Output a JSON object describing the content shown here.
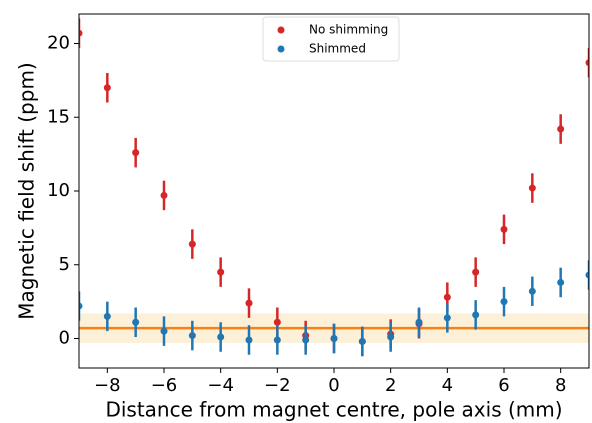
{
  "chart_data": {
    "type": "scatter",
    "x_label": "Distance from magnet centre, pole axis (mm)",
    "y_label": "Magnetic field shift (ppm)",
    "x": [
      -9,
      -8,
      -7,
      -6,
      -5,
      -4,
      -3,
      -2,
      -1,
      0,
      1,
      2,
      3,
      4,
      5,
      6,
      7,
      8,
      9
    ],
    "series": [
      {
        "name": "No shimming",
        "color": "#d62728",
        "values": [
          20.7,
          17.0,
          12.6,
          9.7,
          6.4,
          4.5,
          2.4,
          1.1,
          0.2,
          0.0,
          -0.2,
          0.3,
          1.0,
          2.8,
          4.5,
          7.4,
          10.2,
          14.2,
          18.7
        ],
        "errors": [
          1.0,
          1.0,
          1.0,
          1.0,
          1.0,
          1.0,
          1.0,
          1.0,
          1.0,
          1.0,
          1.0,
          1.0,
          1.0,
          1.0,
          1.0,
          1.0,
          1.0,
          1.0,
          1.0
        ]
      },
      {
        "name": "Shimmed",
        "color": "#1f77b4",
        "values": [
          2.2,
          1.5,
          1.1,
          0.5,
          0.2,
          0.1,
          -0.1,
          -0.1,
          -0.1,
          0.0,
          -0.2,
          0.1,
          1.1,
          1.4,
          1.6,
          2.5,
          3.2,
          3.8,
          4.3
        ],
        "errors": [
          1.0,
          1.0,
          1.0,
          1.0,
          1.0,
          1.0,
          1.0,
          1.0,
          1.0,
          1.0,
          1.0,
          1.0,
          1.0,
          1.0,
          1.0,
          1.0,
          1.0,
          1.0,
          1.0
        ]
      }
    ],
    "reference_line": {
      "value": 0.7,
      "band": [
        -0.3,
        1.7
      ],
      "color": "#ff7f0e",
      "band_color": "#fdf0d8"
    },
    "xlim": [
      -9,
      9
    ],
    "ylim": [
      -2,
      22
    ],
    "xticks": [
      {
        "value": -8,
        "label": "−8"
      },
      {
        "value": -6,
        "label": "−6"
      },
      {
        "value": -4,
        "label": "−4"
      },
      {
        "value": -2,
        "label": "−2"
      },
      0,
      2,
      4,
      6,
      8
    ],
    "yticks": [
      0,
      5,
      10,
      15,
      20
    ],
    "legend": "upper center"
  }
}
